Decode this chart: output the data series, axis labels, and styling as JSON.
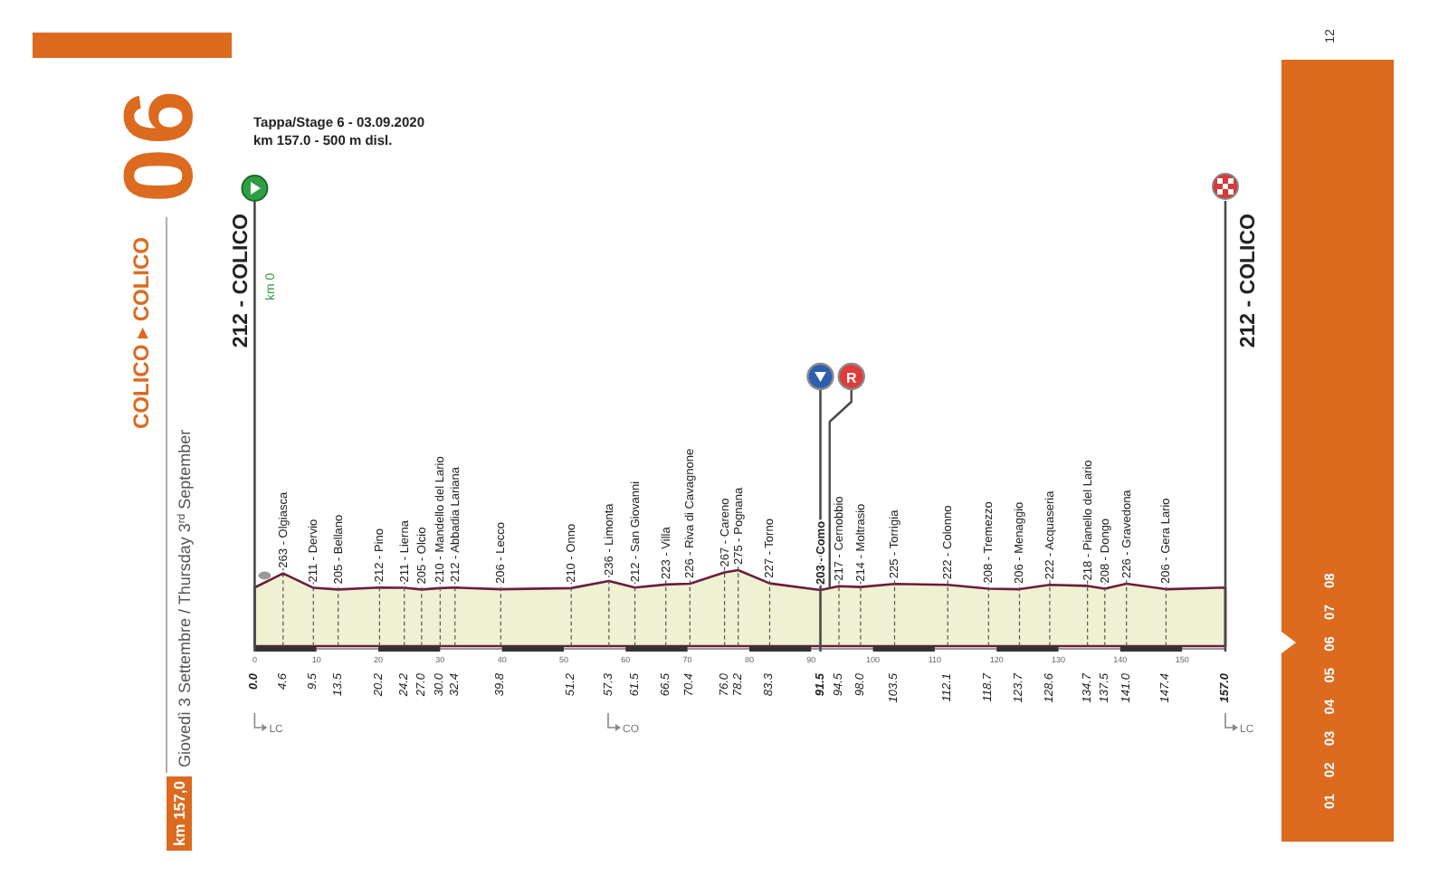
{
  "chart_data": {
    "type": "area",
    "title": "COLICO ▸ COLICO",
    "subtitle": "Giovedì 3 Settembre / Thursday 3$^{rd}$ September",
    "x": [
      0,
      4.6,
      9.5,
      13.5,
      20.2,
      24.2,
      27.0,
      30.0,
      32.4,
      39.8,
      51.2,
      57.3,
      61.5,
      66.5,
      70.4,
      76.0,
      78.2,
      83.3,
      91.5,
      94.5,
      98.0,
      103.5,
      112.1,
      118.7,
      123.7,
      128.6,
      134.7,
      137.5,
      141.0,
      147.4,
      157
    ],
    "values": [
      212,
      263,
      211,
      205,
      212,
      211,
      205,
      210,
      212,
      206,
      210,
      236,
      212,
      223,
      226,
      267,
      275,
      227,
      203,
      217,
      214,
      225,
      222,
      208,
      206,
      222,
      218,
      208,
      226,
      206,
      212
    ],
    "value_labels": [
      null,
      "263 - Olgiasca",
      "211 - Dervio",
      "205 - Bellano",
      "212 - Pino",
      "211 - Lierna",
      "205 - Olcio",
      "210 - Mandello del Lario",
      "212 - Abbadia Lariana",
      "206 - Lecco",
      "210 - Onno",
      "236 - Limonta",
      "212 - San Giovanni",
      "223 - Villa",
      "226 - Riva di Cavagnone",
      "267 - Careno",
      "275 - Pognana",
      "227 - Torno",
      "203 - Como",
      "217 - Cernobbio",
      "214 - Moltrasio",
      "225 - Torrigia",
      "222 - Colonno",
      "208 - Tremezzo",
      "206 - Menaggio",
      "222 - Acquaseria",
      "218 - Pianello del Lario",
      "208 - Dongo",
      "226 - Gravedona",
      "206 - Gera Lario",
      null
    ],
    "color": "#eef1d2",
    "xlim": [
      0,
      157
    ],
    "xticks": [
      {
        "value": 0,
        "label": "0.0"
      },
      4.6,
      9.5,
      13.5,
      20.2,
      24.2,
      {
        "value": 27,
        "label": "27.0"
      },
      {
        "value": 30,
        "label": "30.0"
      },
      32.4,
      39.8,
      51.2,
      57.3,
      61.5,
      66.5,
      70.4,
      {
        "value": 76,
        "label": "76.0"
      },
      78.2,
      83.3,
      91.5,
      94.5,
      {
        "value": 98,
        "label": "98.0"
      },
      103.5,
      112.1,
      118.7,
      123.7,
      128.6,
      134.7,
      137.5,
      {
        "value": 141,
        "label": "141.0"
      },
      147.4,
      {
        "value": 157,
        "label": "157.0"
      }
    ],
    "x2lim": [
      0,
      157
    ],
    "x2ticks": [
      0,
      10,
      20,
      30,
      40,
      50,
      60,
      70,
      80,
      90,
      100,
      110,
      120,
      130,
      140,
      150
    ],
    "tick_labels": "x",
    "grid": "x",
    "ref_lines": [
      {
        "axis": "x",
        "value": 0,
        "label": "km 0"
      },
      {
        "axis": "x",
        "value": 91.5
      },
      {
        "axis": "x",
        "value": 93,
        "label": "R"
      },
      {
        "axis": "x",
        "value": 157
      }
    ],
    "annotations": [
      "06",
      "km 157,0",
      "Tappa/Stage 6 - 03.09.2020",
      "km 157.0 - 500 m disl.",
      "01 02 03 04 05 06 07 08",
      "12",
      "LC",
      "CO",
      "LC",
      "212 - COLICO",
      "212 - COLICO"
    ]
  }
}
